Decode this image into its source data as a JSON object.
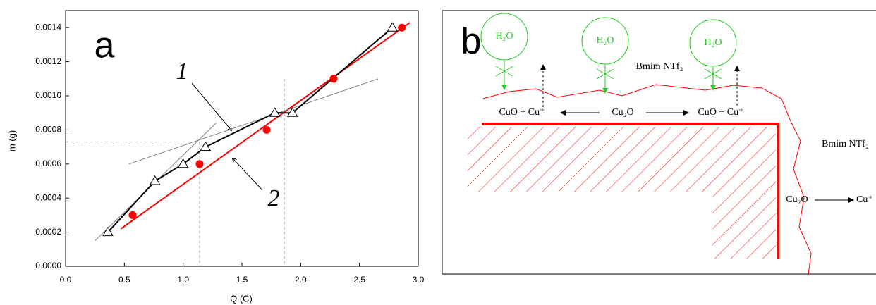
{
  "chart_data": {
    "type": "scatter",
    "title": "a",
    "xlabel": "Q (C)",
    "ylabel": "m (g)",
    "xlim": [
      0,
      3
    ],
    "ylim": [
      0,
      0.0015
    ],
    "xticks": [
      {
        "value": 0,
        "label": "0.0"
      },
      0.5,
      {
        "value": 1,
        "label": "1.0"
      },
      1.5,
      {
        "value": 2,
        "label": "2.0"
      },
      2.5,
      {
        "value": 3,
        "label": "3.0"
      }
    ],
    "yticks": [
      {
        "value": 0,
        "label": "0.0000"
      },
      {
        "value": 0.0002,
        "label": "0.0002"
      },
      {
        "value": 0.0004,
        "label": "0.0004"
      },
      {
        "value": 0.0006,
        "label": "0.0006"
      },
      {
        "value": 0.0008,
        "label": "0.0008"
      },
      {
        "value": 0.001,
        "label": "0.0010"
      },
      {
        "value": 0.0012,
        "label": "0.0012"
      },
      {
        "value": 0.0014,
        "label": "0.0014"
      }
    ],
    "series": [
      {
        "color": "#000000",
        "marker": "triangle",
        "line": true,
        "x": [
          0.36,
          0.76,
          1.0,
          1.19,
          1.78,
          1.93,
          2.78
        ],
        "values": [
          0.0002,
          0.0005,
          0.0006,
          0.0007,
          0.0009,
          0.0009,
          0.0014
        ]
      },
      {
        "color": "#ff0000",
        "marker": "circle",
        "line": false,
        "x": [
          0.57,
          1.14,
          1.71,
          2.28,
          2.86
        ],
        "values": [
          0.0003,
          0.0006,
          0.0008,
          0.0011,
          0.0014
        ]
      }
    ],
    "fits": [
      {
        "color": "#ff0000",
        "width": 2,
        "x": [
          0.47,
          2.93
        ],
        "values": [
          0.00022,
          0.00143
        ]
      },
      {
        "color": "#808080",
        "width": 1,
        "x": [
          0.25,
          1.28
        ],
        "values": [
          0.00015,
          0.00084
        ]
      },
      {
        "color": "#808080",
        "width": 1,
        "x": [
          0.54,
          2.66
        ],
        "values": [
          0.0006,
          0.0011
        ]
      }
    ],
    "guides": [
      {
        "x": [
          0,
          1.14
        ],
        "values": [
          0.00073,
          0.00073
        ]
      },
      {
        "x": [
          1.14,
          1.14
        ],
        "values": [
          0.00073,
          0
        ]
      },
      {
        "x": [
          1.86,
          1.86
        ],
        "values": [
          0.0011,
          0
        ]
      }
    ],
    "annotations": [
      "1",
      "2"
    ]
  },
  "diagram": {
    "label": "b",
    "water": [
      "H₂O",
      "H₂O",
      "H₂O"
    ],
    "liquid": [
      "Bmim NTf₂",
      "Bmim NTf₂"
    ],
    "products": [
      "CuO + Cu⁺",
      "Cu₂O",
      "CuO + Cu⁺"
    ],
    "side": [
      "Cu₂O",
      "Cu⁺"
    ]
  }
}
